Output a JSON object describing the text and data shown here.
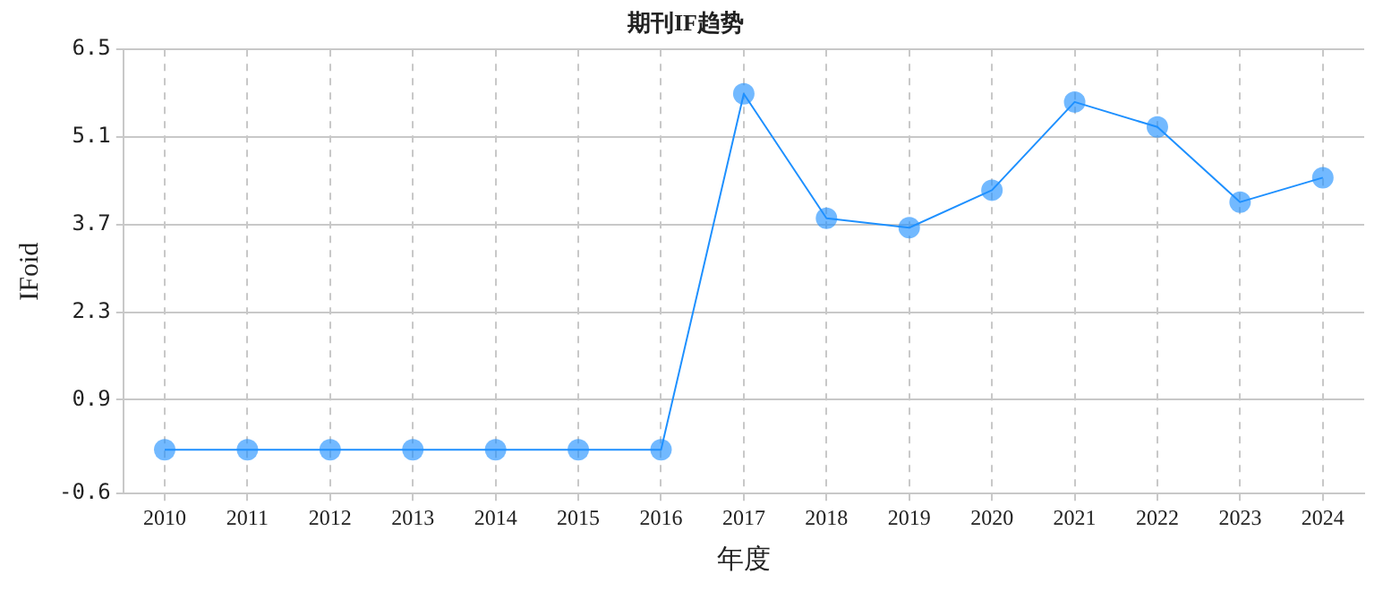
{
  "chart_data": {
    "type": "line",
    "title": "期刊IF趋势",
    "xlabel": "年度",
    "ylabel": "IFoid",
    "categories": [
      "2010",
      "2011",
      "2012",
      "2013",
      "2014",
      "2015",
      "2016",
      "2017",
      "2018",
      "2019",
      "2020",
      "2021",
      "2022",
      "2023",
      "2024"
    ],
    "series": [
      {
        "color": "#1e90ff",
        "values": [
          0.1,
          0.1,
          0.1,
          0.1,
          0.1,
          0.1,
          0.1,
          5.79,
          3.8,
          3.65,
          4.25,
          5.66,
          5.26,
          4.06,
          4.45
        ]
      }
    ],
    "ylim": [
      -0.6,
      6.5
    ],
    "yticks": [
      -0.6,
      0.9,
      2.3,
      3.7,
      5.1,
      6.5
    ],
    "grid": true,
    "legend": false,
    "marker": "circle",
    "line_style": "solid"
  }
}
